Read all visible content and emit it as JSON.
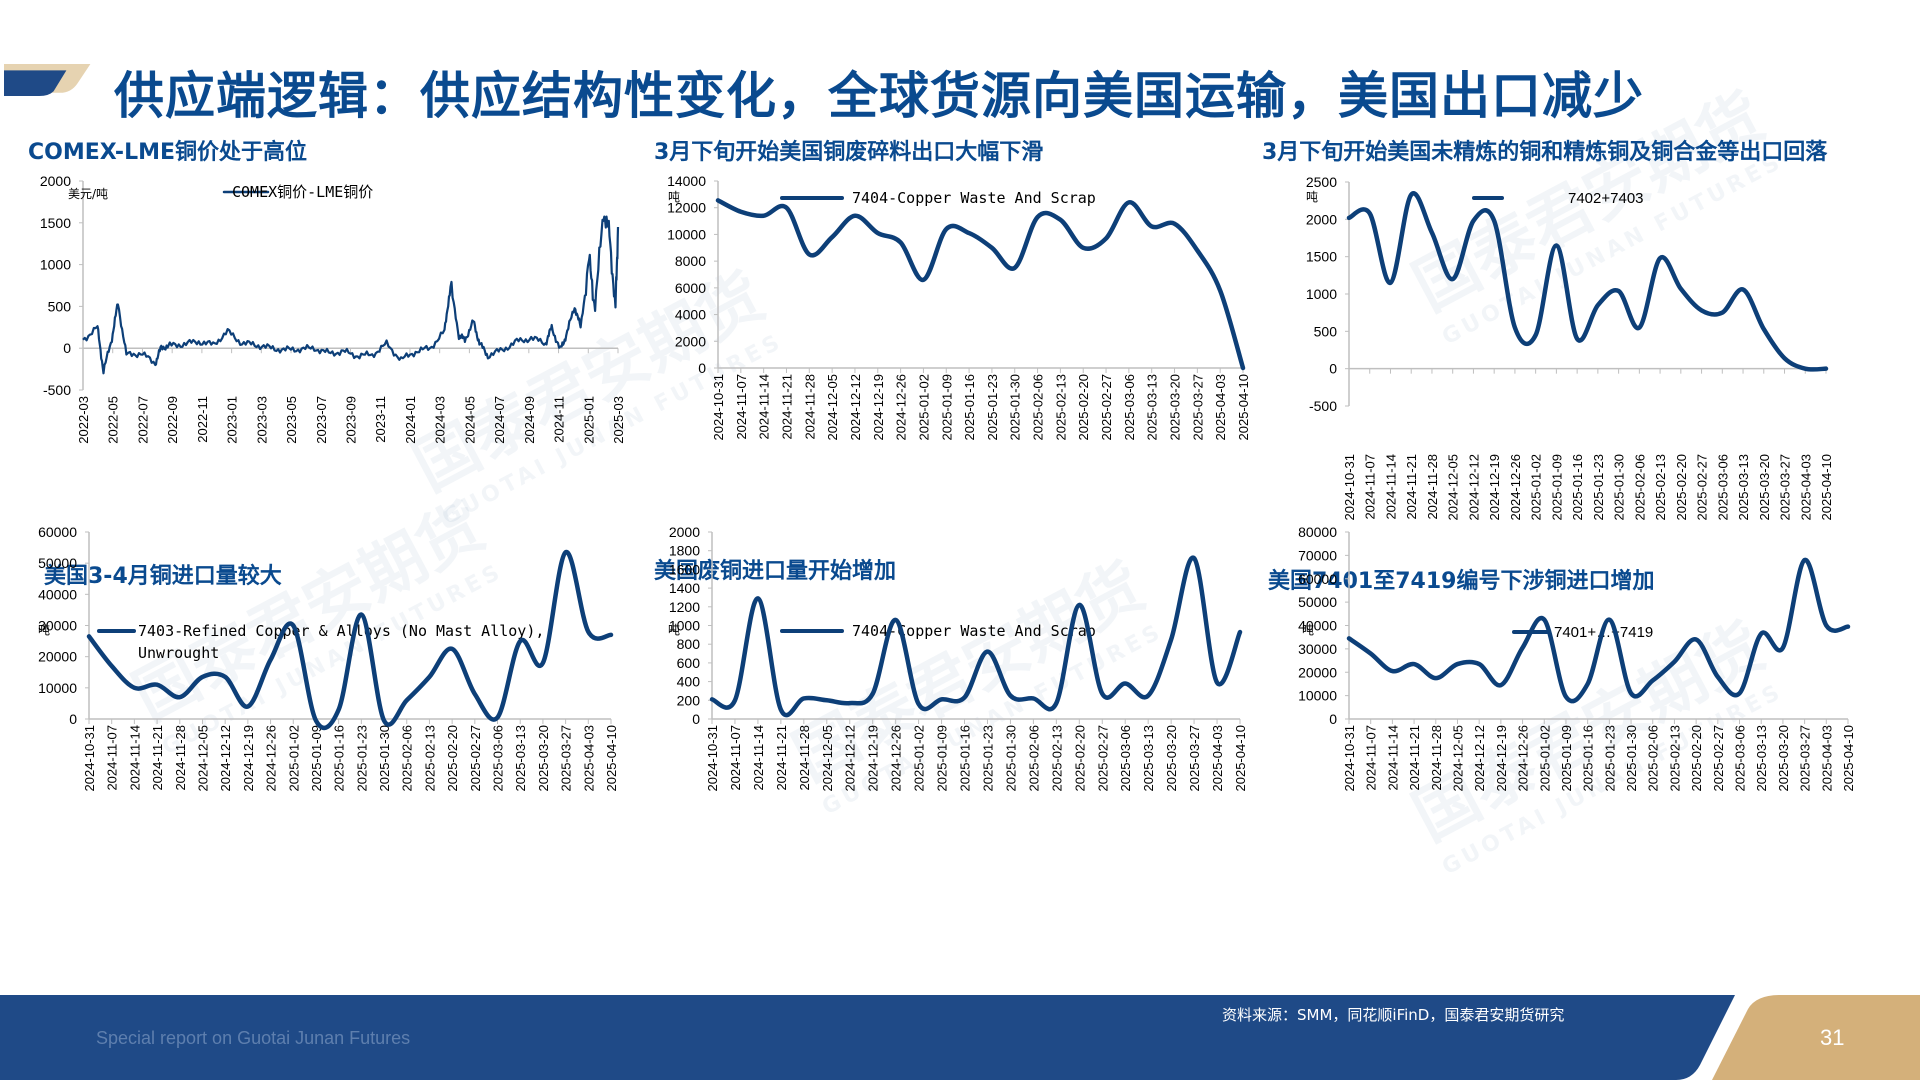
{
  "header": {
    "title": "供应端逻辑：供应结构性变化，全球货源向美国运输，美国出口减少"
  },
  "colors": {
    "title_blue": "#0a4a8f",
    "line_blue": "#0d3f78",
    "footer_blue": "#1f4a87",
    "accent_gold": "#d4b07a",
    "axis_gray": "#bfbfbf"
  },
  "footer": {
    "tagline": "Special report on Guotai Junan Futures",
    "source": "资料来源：SMM，同花顺iFinD，国泰君安期货研究",
    "page_number": "31"
  },
  "watermark": {
    "cn": "国泰君安期货",
    "en": "GUOTAI JUNAN FUTURES"
  },
  "chart_data": [
    {
      "id": "comex_lme",
      "type": "line",
      "title": "COMEX-LME铜价处于高位",
      "unit": "美元/吨",
      "legend": "COMEX铜价-LME铜价",
      "xlabel": "",
      "ylabel": "美元/吨",
      "ylim": [
        -500,
        2000
      ],
      "yticks": [
        2000,
        1500,
        1000,
        500,
        0,
        -500
      ],
      "categories": [
        "2022-03",
        "2022-05",
        "2022-07",
        "2022-09",
        "2022-11",
        "2023-01",
        "2023-03",
        "2023-05",
        "2023-07",
        "2023-09",
        "2023-11",
        "2024-01",
        "2024-03",
        "2024-05",
        "2024-07",
        "2024-09",
        "2024-11",
        "2025-01",
        "2025-03"
      ],
      "x": [
        "2022-03",
        "2022-04",
        "2022-04",
        "2022-05",
        "2022-05",
        "2022-06",
        "2022-07",
        "2022-08",
        "2022-08",
        "2022-09",
        "2022-10",
        "2022-11",
        "2022-12",
        "2023-01",
        "2023-02",
        "2023-03",
        "2023-04",
        "2023-05",
        "2023-06",
        "2023-07",
        "2023-08",
        "2023-09",
        "2023-10",
        "2023-11",
        "2023-12",
        "2024-01",
        "2024-02",
        "2024-03",
        "2024-04",
        "2024-04",
        "2024-05",
        "2024-05",
        "2024-06",
        "2024-06",
        "2024-07",
        "2024-08",
        "2024-09",
        "2024-10",
        "2024-11",
        "2024-11",
        "2024-12",
        "2024-12",
        "2025-01",
        "2025-01",
        "2025-02",
        "2025-02",
        "2025-03",
        "2025-03",
        "2025-03",
        "2025-04"
      ],
      "values": [
        100,
        250,
        -280,
        120,
        540,
        -80,
        -60,
        -180,
        10,
        30,
        50,
        80,
        40,
        200,
        60,
        40,
        0,
        -20,
        -10,
        0,
        -60,
        -40,
        -90,
        -80,
        50,
        -140,
        -40,
        0,
        200,
        750,
        150,
        100,
        320,
        60,
        -90,
        -20,
        80,
        120,
        60,
        250,
        -20,
        150,
        500,
        250,
        1050,
        480,
        1650,
        1350,
        480,
        1450
      ]
    },
    {
      "id": "us_scrap_export",
      "type": "line",
      "title": "3月下旬开始美国铜废碎料出口大幅下滑",
      "unit": "吨",
      "legend": "7404-Copper Waste And Scrap",
      "ylim": [
        0,
        14000
      ],
      "yticks": [
        14000,
        12000,
        10000,
        8000,
        6000,
        4000,
        2000,
        0
      ],
      "categories": [
        "2024-10-31",
        "2024-11-07",
        "2024-11-14",
        "2024-11-21",
        "2024-11-28",
        "2024-12-05",
        "2024-12-12",
        "2024-12-19",
        "2024-12-26",
        "2025-01-02",
        "2025-01-09",
        "2025-01-16",
        "2025-01-23",
        "2025-01-30",
        "2025-02-06",
        "2025-02-13",
        "2025-02-20",
        "2025-02-27",
        "2025-03-06",
        "2025-03-13",
        "2025-03-20",
        "2025-03-27",
        "2025-04-03",
        "2025-04-10"
      ],
      "values": [
        12550,
        11700,
        11400,
        12000,
        8500,
        9800,
        11400,
        10100,
        9400,
        6600,
        10400,
        10100,
        9000,
        7500,
        11300,
        11100,
        9000,
        9700,
        12400,
        10600,
        10800,
        8800,
        5800,
        0
      ]
    },
    {
      "id": "us_refined_export",
      "type": "line",
      "title": "3月下旬开始美国未精炼的铜和精炼铜及铜合金等出口回落",
      "unit": "吨",
      "legend": "7402+7403",
      "ylim": [
        -500,
        2500
      ],
      "yticks": [
        2500,
        2000,
        1500,
        1000,
        500,
        0,
        -500
      ],
      "categories": [
        "2024-10-31",
        "2024-11-07",
        "2024-11-14",
        "2024-11-21",
        "2024-11-28",
        "2024-12-05",
        "2024-12-12",
        "2024-12-19",
        "2024-12-26",
        "2025-01-02",
        "2025-01-09",
        "2025-01-16",
        "2025-01-23",
        "2025-01-30",
        "2025-02-06",
        "2025-02-13",
        "2025-02-20",
        "2025-02-27",
        "2025-03-06",
        "2025-03-13",
        "2025-03-20",
        "2025-03-27",
        "2025-04-03",
        "2025-04-10"
      ],
      "values": [
        2020,
        2080,
        1150,
        2330,
        1820,
        1200,
        1980,
        1980,
        550,
        450,
        1650,
        400,
        850,
        1040,
        550,
        1480,
        1070,
        780,
        750,
        1060,
        530,
        140,
        0,
        0
      ]
    },
    {
      "id": "us_refined_import",
      "type": "line",
      "title": "美国3-4月铜进口量较大",
      "unit": "吨",
      "legend": "7403-Refined Copper & Alloys (No Mast Alloy), Unwrought",
      "ylim": [
        0,
        60000
      ],
      "yticks": [
        60000,
        50000,
        40000,
        30000,
        20000,
        10000,
        0
      ],
      "categories": [
        "2024-10-31",
        "2024-11-07",
        "2024-11-14",
        "2024-11-21",
        "2024-11-28",
        "2024-12-05",
        "2024-12-12",
        "2024-12-19",
        "2024-12-26",
        "2025-01-02",
        "2025-01-09",
        "2025-01-16",
        "2025-01-23",
        "2025-01-30",
        "2025-02-06",
        "2025-02-13",
        "2025-02-20",
        "2025-02-27",
        "2025-03-06",
        "2025-03-13",
        "2025-03-20",
        "2025-03-27",
        "2025-04-03",
        "2025-04-10"
      ],
      "values": [
        26500,
        17000,
        10000,
        11000,
        7000,
        13500,
        13500,
        4000,
        19000,
        30000,
        -500,
        3000,
        33500,
        -500,
        6000,
        13500,
        22500,
        8000,
        500,
        25000,
        18000,
        53500,
        28000,
        27000
      ]
    },
    {
      "id": "us_scrap_import",
      "type": "line",
      "title": "美国废铜进口量开始增加",
      "unit": "吨",
      "legend": "7404-Copper Waste And Scrap",
      "ylim": [
        0,
        2000
      ],
      "yticks": [
        2000,
        1800,
        1600,
        1400,
        1200,
        1000,
        800,
        600,
        400,
        200,
        0
      ],
      "categories": [
        "2024-10-31",
        "2024-11-07",
        "2024-11-14",
        "2024-11-21",
        "2024-11-28",
        "2024-12-05",
        "2024-12-12",
        "2024-12-19",
        "2024-12-26",
        "2025-01-02",
        "2025-01-09",
        "2025-01-16",
        "2025-01-23",
        "2025-01-30",
        "2025-02-06",
        "2025-02-13",
        "2025-02-20",
        "2025-02-27",
        "2025-03-06",
        "2025-03-13",
        "2025-03-20",
        "2025-03-27",
        "2025-04-03",
        "2025-04-10"
      ],
      "values": [
        210,
        200,
        1290,
        100,
        220,
        200,
        170,
        270,
        1060,
        160,
        210,
        230,
        720,
        250,
        220,
        170,
        1220,
        270,
        380,
        250,
        850,
        1720,
        390,
        930
      ]
    },
    {
      "id": "us_total_import",
      "type": "line",
      "title": "美国7401至7419编号下涉铜进口增加",
      "unit": "吨",
      "legend": "7401+…+7419",
      "ylim": [
        0,
        80000
      ],
      "yticks": [
        80000,
        70000,
        60000,
        50000,
        40000,
        30000,
        20000,
        10000,
        0
      ],
      "categories": [
        "2024-10-31",
        "2024-11-07",
        "2024-11-14",
        "2024-11-21",
        "2024-11-28",
        "2024-12-05",
        "2024-12-12",
        "2024-12-19",
        "2024-12-26",
        "2025-01-02",
        "2025-01-09",
        "2025-01-16",
        "2025-01-23",
        "2025-01-30",
        "2025-02-06",
        "2025-02-13",
        "2025-02-20",
        "2025-02-27",
        "2025-03-06",
        "2025-03-13",
        "2025-03-20",
        "2025-03-27",
        "2025-04-03",
        "2025-04-10"
      ],
      "values": [
        34500,
        28000,
        20500,
        23500,
        17500,
        23500,
        23500,
        14500,
        30500,
        42500,
        9500,
        15000,
        42500,
        11000,
        16500,
        24500,
        34000,
        18000,
        11000,
        36500,
        30500,
        68000,
        40000,
        39500
      ]
    }
  ]
}
